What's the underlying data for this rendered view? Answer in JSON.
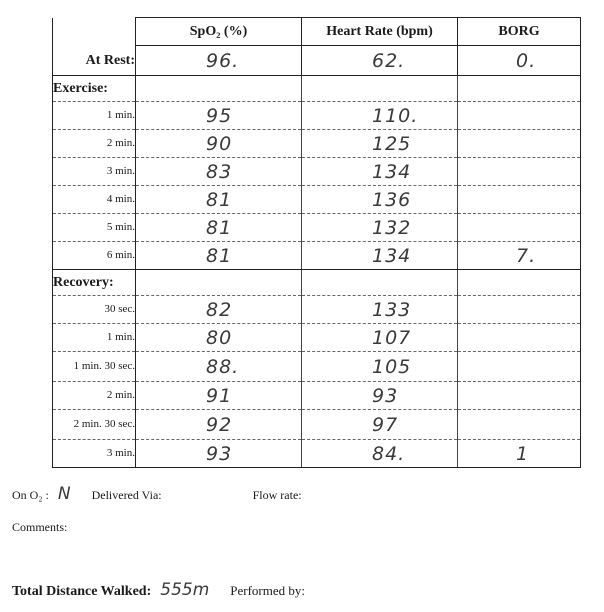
{
  "table": {
    "headers": {
      "spo2": "SpO₂ (%)",
      "heart_rate": "Heart Rate (bpm)",
      "borg": "BORG"
    },
    "at_rest": {
      "label": "At Rest:",
      "spo2": "96.",
      "heart_rate": "62.",
      "borg": "0."
    },
    "exercise": {
      "label": "Exercise:",
      "rows": [
        {
          "label": "1 min.",
          "spo2": "95",
          "heart_rate": "110.",
          "borg": ""
        },
        {
          "label": "2 min.",
          "spo2": "90",
          "heart_rate": "125",
          "borg": ""
        },
        {
          "label": "3 min.",
          "spo2": "83",
          "heart_rate": "134",
          "borg": ""
        },
        {
          "label": "4 min.",
          "spo2": "81",
          "heart_rate": "136",
          "borg": ""
        },
        {
          "label": "5 min.",
          "spo2": "81",
          "heart_rate": "132",
          "borg": ""
        },
        {
          "label": "6 min.",
          "spo2": "81",
          "heart_rate": "134",
          "borg": "7."
        }
      ]
    },
    "recovery": {
      "label": "Recovery:",
      "rows": [
        {
          "label": "30 sec.",
          "spo2": "82",
          "heart_rate": "133",
          "borg": ""
        },
        {
          "label": "1 min.",
          "spo2": "80",
          "heart_rate": "107",
          "borg": ""
        },
        {
          "label": "1 min. 30 sec.",
          "spo2": "88.",
          "heart_rate": "105",
          "borg": ""
        },
        {
          "label": "2 min.",
          "spo2": "91",
          "heart_rate": "93",
          "borg": ""
        },
        {
          "label": "2 min. 30 sec.",
          "spo2": "92",
          "heart_rate": "97",
          "borg": ""
        },
        {
          "label": "3 min.",
          "spo2": "93",
          "heart_rate": "84.",
          "borg": "1"
        }
      ]
    }
  },
  "footer": {
    "on_o2_label": "On O₂ :",
    "on_o2_value": "N",
    "delivered_via_label": "Delivered Via:",
    "flow_rate_label": "Flow rate:",
    "comments_label": "Comments:",
    "total_distance_label": "Total Distance Walked:",
    "total_distance_value": "555m",
    "performed_by_label": "Performed by:"
  }
}
